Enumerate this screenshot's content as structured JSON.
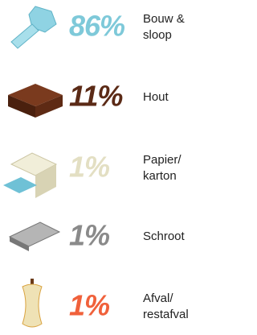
{
  "items": [
    {
      "percent": "86%",
      "label": [
        "Bouw &",
        "sloop"
      ],
      "color": "#7ec9d9"
    },
    {
      "percent": "11%",
      "label": [
        "Hout"
      ],
      "color": "#5b2a16"
    },
    {
      "percent": "1%",
      "label": [
        "Papier/",
        "karton"
      ],
      "color": "#e3dfc3"
    },
    {
      "percent": "1%",
      "label": [
        "Schroot"
      ],
      "color": "#8a8a8a"
    },
    {
      "percent": "1%",
      "label": [
        "Afval/",
        "restafval"
      ],
      "color": "#f0613b"
    }
  ]
}
